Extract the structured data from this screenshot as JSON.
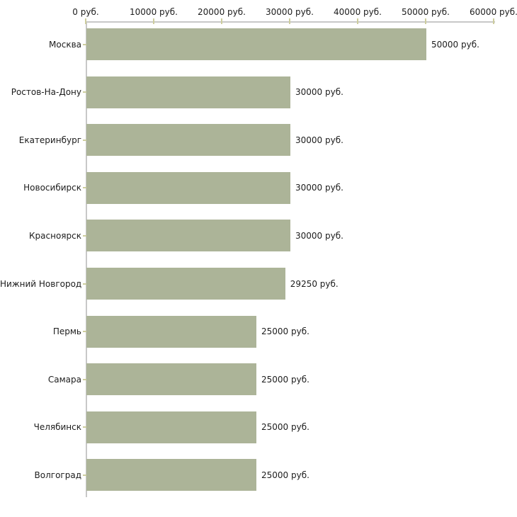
{
  "chart_data": {
    "type": "bar",
    "orientation": "horizontal",
    "title": "",
    "xlabel": "",
    "ylabel": "",
    "unit": "руб.",
    "categories": [
      "Москва",
      "Ростов-На-Дону",
      "Екатеринбург",
      "Новосибирск",
      "Красноярск",
      "Нижний Новгород",
      "Пермь",
      "Самара",
      "Челябинск",
      "Волгоград"
    ],
    "values": [
      50000,
      30000,
      30000,
      30000,
      30000,
      29250,
      25000,
      25000,
      25000,
      25000
    ],
    "value_labels": [
      "50000 руб.",
      "30000 руб.",
      "30000 руб.",
      "30000 руб.",
      "30000 руб.",
      "29250 руб.",
      "25000 руб.",
      "25000 руб.",
      "25000 руб.",
      "25000 руб."
    ],
    "x_axis": {
      "position": "top",
      "range": [
        0,
        60000
      ],
      "ticks": [
        0,
        10000,
        20000,
        30000,
        40000,
        50000,
        60000
      ],
      "tick_labels": [
        "0 руб.",
        "10000 руб.",
        "20000 руб.",
        "30000 руб.",
        "40000 руб.",
        "50000 руб.",
        "60000 руб."
      ]
    },
    "grid": false,
    "legend": false,
    "colors": {
      "bar": "#acb498",
      "axis_line": "#c8c8c8",
      "tick_mark": "#cdcd9e",
      "text": "#1c1c1c",
      "background": "#ffffff"
    }
  }
}
